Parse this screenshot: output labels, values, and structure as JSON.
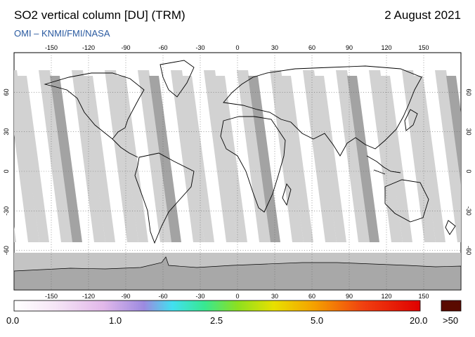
{
  "header": {
    "title": "SO2 vertical column [DU] (TRM)",
    "date": "2 August 2021",
    "source": "OMI  –  KNMI/FMI/NASA"
  },
  "map": {
    "lon_ticks": [
      "-150",
      "-120",
      "-90",
      "-60",
      "-30",
      "0",
      "30",
      "60",
      "90",
      "120",
      "150"
    ],
    "lat_ticks": [
      "60",
      "30",
      "0",
      "-30",
      "-60"
    ],
    "projection": "equirectangular",
    "grid": "dotted",
    "swath_colors": {
      "light": "#d2d2d2",
      "dark": "#a3a3a3",
      "polar": "#c4c4c4",
      "antarctica": "#a8a8a8"
    }
  },
  "colorbar": {
    "labels": [
      "0.0",
      "1.0",
      "2.5",
      "5.0",
      "20.0"
    ],
    "overflow_label": ">50",
    "overflow_color": "#5a0a00"
  }
}
